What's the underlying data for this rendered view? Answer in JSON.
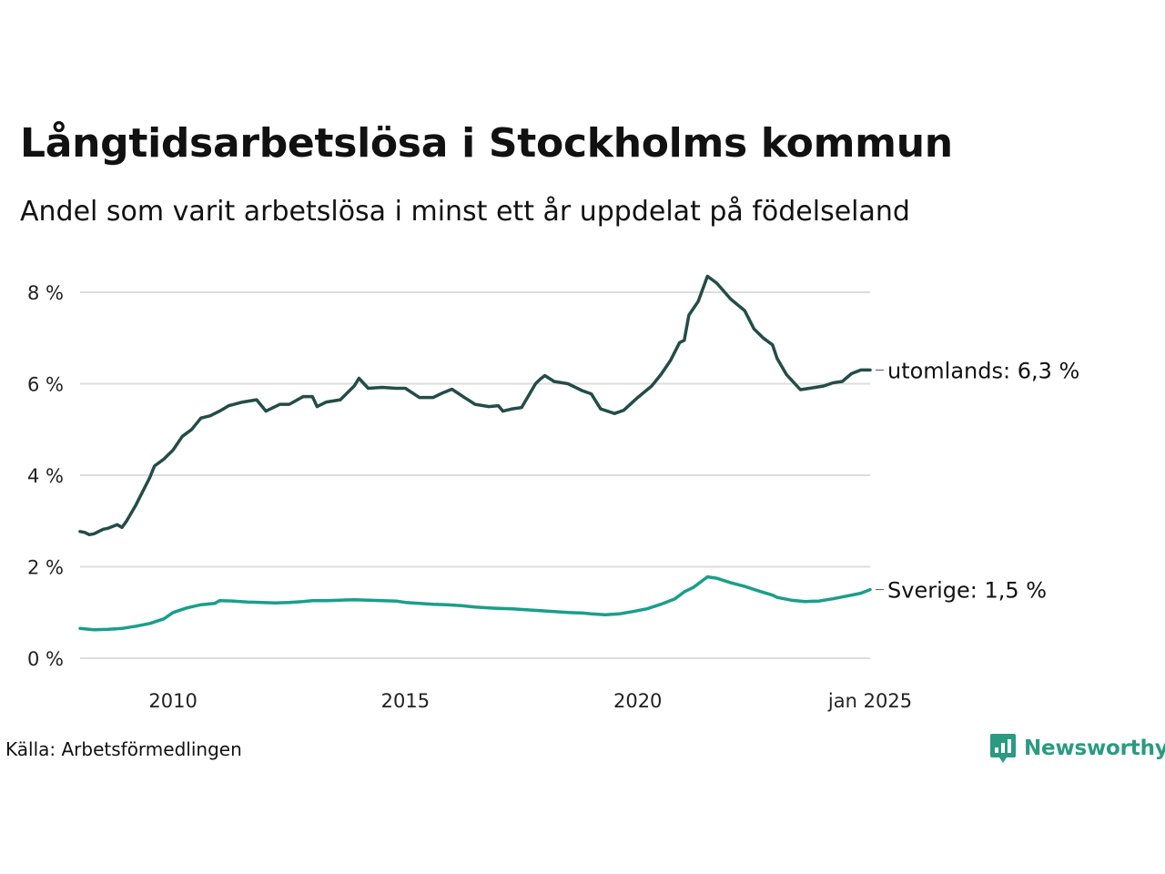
{
  "title": "Långtidsarbetslösa i Stockholms kommun",
  "subtitle": "Andel som varit arbetslösa i minst ett år uppdelat på födelseland",
  "source": "Källa: Arbetsförmedlingen",
  "logo": {
    "text": "Newsworthy",
    "icon": "newsworthy-logo-icon"
  },
  "colors": {
    "utomlands": "#234d47",
    "sverige": "#1a9e8b",
    "grid": "#dddddd",
    "brand": "#2a9a83"
  },
  "chart_data": {
    "type": "line",
    "title": "Långtidsarbetslösa i Stockholms kommun",
    "subtitle": "Andel som varit arbetslösa i minst ett år uppdelat på födelseland",
    "xlabel": "",
    "ylabel": "",
    "xlim": [
      2008.0,
      2025.0
    ],
    "ylim": [
      0,
      8
    ],
    "grid": true,
    "x_ticks": [
      {
        "value": 2010,
        "label": "2010"
      },
      {
        "value": 2015,
        "label": "2015"
      },
      {
        "value": 2020,
        "label": "2020"
      },
      {
        "value": 2025.0,
        "label": "jan 2025"
      }
    ],
    "y_ticks": [
      {
        "value": 0,
        "label": "0 %"
      },
      {
        "value": 2,
        "label": "2 %"
      },
      {
        "value": 4,
        "label": "4 %"
      },
      {
        "value": 6,
        "label": "6 %"
      },
      {
        "value": 8,
        "label": "8 %"
      }
    ],
    "series": [
      {
        "name": "utomlands",
        "end_label": "utomlands: 6,3 %",
        "color": "#234d47",
        "x": [
          2008.0,
          2008.1,
          2008.2,
          2008.3,
          2008.5,
          2008.6,
          2008.8,
          2008.9,
          2009.0,
          2009.2,
          2009.3,
          2009.5,
          2009.6,
          2009.8,
          2010.0,
          2010.2,
          2010.4,
          2010.6,
          2010.8,
          2011.0,
          2011.2,
          2011.5,
          2011.8,
          2012.0,
          2012.1,
          2012.3,
          2012.5,
          2012.8,
          2013.0,
          2013.1,
          2013.3,
          2013.6,
          2013.9,
          2014.0,
          2014.2,
          2014.5,
          2014.8,
          2015.0,
          2015.3,
          2015.6,
          2015.8,
          2016.0,
          2016.3,
          2016.5,
          2016.8,
          2017.0,
          2017.1,
          2017.3,
          2017.5,
          2017.8,
          2017.9,
          2018.0,
          2018.2,
          2018.5,
          2018.8,
          2019.0,
          2019.2,
          2019.5,
          2019.7,
          2020.0,
          2020.3,
          2020.5,
          2020.7,
          2020.9,
          2021.0,
          2021.1,
          2021.3,
          2021.5,
          2021.7,
          2022.0,
          2022.3,
          2022.5,
          2022.7,
          2022.9,
          2023.0,
          2023.2,
          2023.5,
          2023.7,
          2024.0,
          2024.2,
          2024.4,
          2024.6,
          2024.8,
          2025.0
        ],
        "values": [
          2.77,
          2.75,
          2.7,
          2.72,
          2.82,
          2.84,
          2.92,
          2.86,
          3.0,
          3.35,
          3.55,
          3.95,
          4.2,
          4.35,
          4.55,
          4.85,
          5.0,
          5.25,
          5.3,
          5.4,
          5.52,
          5.6,
          5.65,
          5.4,
          5.45,
          5.55,
          5.55,
          5.72,
          5.72,
          5.5,
          5.6,
          5.65,
          5.95,
          6.12,
          5.9,
          5.92,
          5.9,
          5.9,
          5.7,
          5.7,
          5.8,
          5.88,
          5.68,
          5.55,
          5.5,
          5.52,
          5.4,
          5.45,
          5.48,
          6.0,
          6.1,
          6.18,
          6.05,
          6.0,
          5.85,
          5.78,
          5.45,
          5.35,
          5.42,
          5.7,
          5.95,
          6.2,
          6.5,
          6.9,
          6.95,
          7.5,
          7.8,
          8.35,
          8.2,
          7.85,
          7.6,
          7.2,
          7.0,
          6.85,
          6.55,
          6.2,
          5.87,
          5.9,
          5.95,
          6.02,
          6.05,
          6.22,
          6.3,
          6.3
        ]
      },
      {
        "name": "Sverige",
        "end_label": "Sverige: 1,5 %",
        "color": "#1a9e8b",
        "x": [
          2008.0,
          2008.3,
          2008.6,
          2008.9,
          2009.2,
          2009.5,
          2009.8,
          2010.0,
          2010.3,
          2010.6,
          2010.9,
          2011.0,
          2011.3,
          2011.6,
          2011.9,
          2012.2,
          2012.5,
          2012.8,
          2013.0,
          2013.3,
          2013.6,
          2013.9,
          2014.2,
          2014.5,
          2014.8,
          2015.0,
          2015.3,
          2015.6,
          2015.9,
          2016.2,
          2016.5,
          2016.8,
          2017.0,
          2017.3,
          2017.6,
          2017.9,
          2018.2,
          2018.5,
          2018.8,
          2019.0,
          2019.3,
          2019.6,
          2019.9,
          2020.2,
          2020.5,
          2020.8,
          2021.0,
          2021.2,
          2021.5,
          2021.7,
          2022.0,
          2022.3,
          2022.6,
          2022.9,
          2023.0,
          2023.3,
          2023.6,
          2023.9,
          2024.2,
          2024.5,
          2024.8,
          2025.0
        ],
        "values": [
          0.65,
          0.62,
          0.63,
          0.65,
          0.7,
          0.76,
          0.86,
          1.0,
          1.1,
          1.17,
          1.2,
          1.26,
          1.25,
          1.23,
          1.22,
          1.21,
          1.22,
          1.24,
          1.26,
          1.26,
          1.27,
          1.28,
          1.27,
          1.26,
          1.25,
          1.22,
          1.2,
          1.18,
          1.17,
          1.15,
          1.12,
          1.1,
          1.09,
          1.08,
          1.06,
          1.04,
          1.02,
          1.0,
          0.99,
          0.97,
          0.95,
          0.97,
          1.02,
          1.08,
          1.18,
          1.3,
          1.45,
          1.55,
          1.78,
          1.75,
          1.65,
          1.57,
          1.47,
          1.38,
          1.33,
          1.27,
          1.24,
          1.25,
          1.3,
          1.36,
          1.42,
          1.5
        ]
      }
    ]
  }
}
